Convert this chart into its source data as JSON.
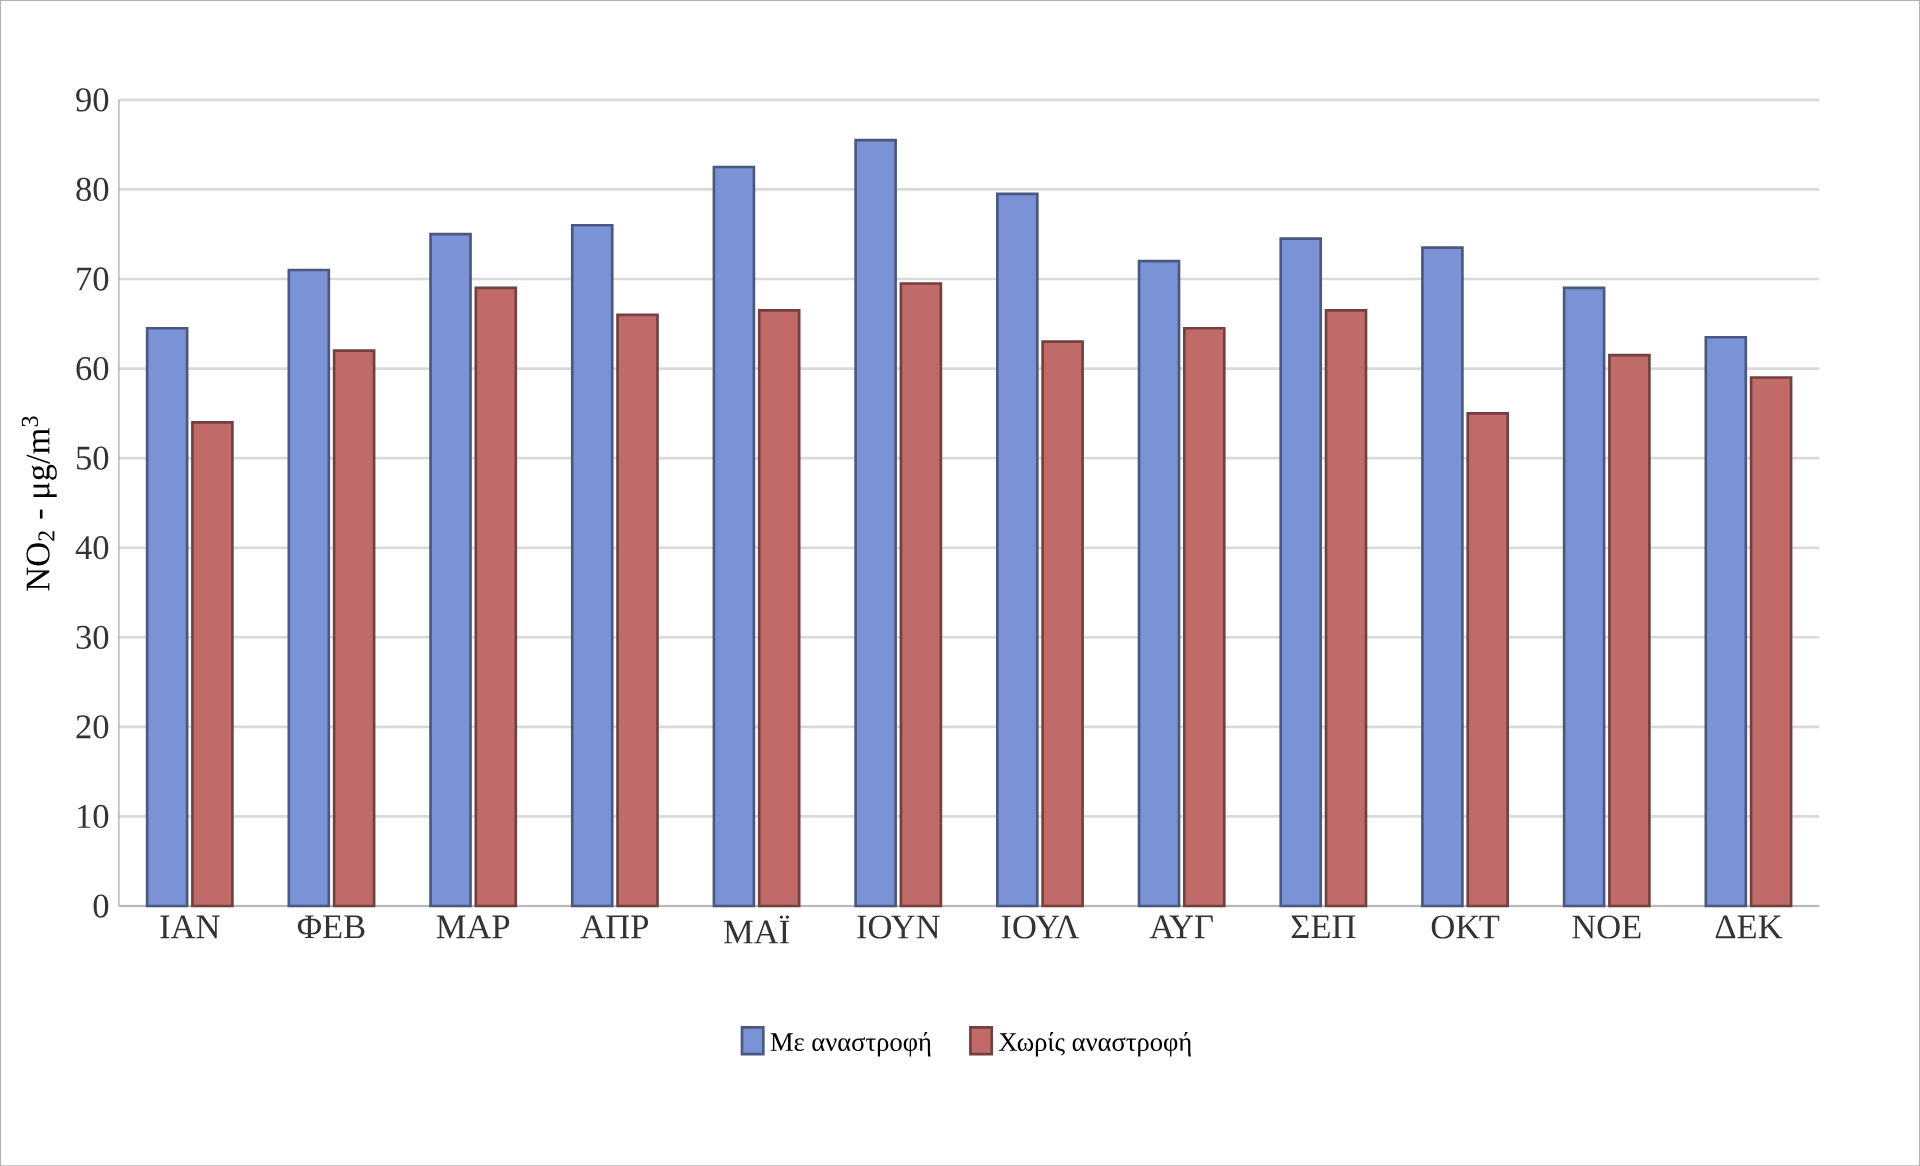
{
  "chart_data": {
    "type": "bar",
    "ylabel": "NO$_{2}$ - μg/m$^{3}$",
    "categories": [
      "ΙΑΝ",
      "ΦΕΒ",
      "ΜΑΡ",
      "ΑΠΡ",
      "ΜΑΪ",
      "ΙΟΥΝ",
      "ΙΟΥΛ",
      "ΑΥΓ",
      "ΣΕΠ",
      "ΟΚΤ",
      "ΝΟΕ",
      "ΔΕΚ"
    ],
    "series": [
      {
        "name": "Με αναστροφή",
        "color": "#7b93d6",
        "values": [
          64.5,
          71,
          75,
          76,
          82.5,
          85.5,
          79.5,
          72,
          74.5,
          73.5,
          69,
          63.5
        ]
      },
      {
        "name": "Χωρίς αναστροφή",
        "color": "#c06a6a",
        "values": [
          54,
          62,
          69,
          66,
          66.5,
          69.5,
          63,
          64.5,
          66.5,
          55,
          61.5,
          59
        ]
      }
    ],
    "ylim": [
      0,
      90
    ],
    "yticks": [
      0,
      10,
      20,
      30,
      40,
      50,
      60,
      70,
      80,
      90
    ],
    "grid": "y",
    "legend": "bottom"
  }
}
